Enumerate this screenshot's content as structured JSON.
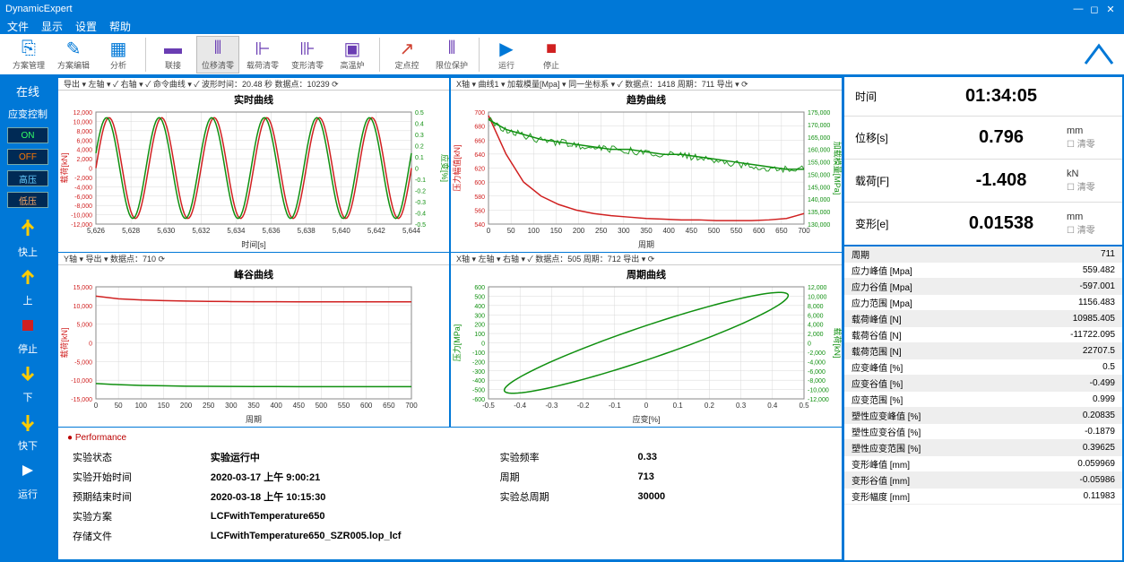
{
  "app_title": "DynamicExpert",
  "menus": [
    "文件",
    "显示",
    "设置",
    "帮助"
  ],
  "toolbar": [
    {
      "label": "方案管理",
      "color": "#0078d7"
    },
    {
      "label": "方案编辑",
      "color": "#0078d7"
    },
    {
      "label": "分析",
      "color": "#0078d7"
    },
    {
      "label": "联接",
      "color": "#6a3db3"
    },
    {
      "label": "位移清零",
      "color": "#6a3db3",
      "sel": true
    },
    {
      "label": "载荷清零",
      "color": "#6a3db3"
    },
    {
      "label": "变形清零",
      "color": "#6a3db3"
    },
    {
      "label": "高温炉",
      "color": "#6a3db3"
    },
    {
      "label": "定点控",
      "color": "#d04030"
    },
    {
      "label": "限位保护",
      "color": "#6a3db3"
    },
    {
      "label": "运行",
      "color": "#0078d7"
    },
    {
      "label": "停止",
      "color": "#d02020"
    }
  ],
  "sidebar": {
    "title1": "在线",
    "title2": "应变控制",
    "on": "ON",
    "off": "OFF",
    "hp": "高压",
    "lp": "低压",
    "labels": [
      "快上",
      "上",
      "停止",
      "下",
      "快下",
      "运行"
    ]
  },
  "charts": {
    "c1": {
      "title": "实时曲线",
      "top": "导出 ▾  左轴 ▾ ✓  右轴 ▾ ✓  命令曲线 ▾ ✓       波形时间：20.48 秒 数据点：10239 ⟳",
      "xlabel": "时间[s]",
      "ylabel_l": "载荷[kN]",
      "ylabel_r": "应变[%]",
      "xticks": [
        "5,626",
        "5,628",
        "5,630",
        "5,632",
        "5,634",
        "5,636",
        "5,638",
        "5,640",
        "5,642",
        "5,644"
      ],
      "yticks_l": [
        "12,000",
        "10,000",
        "8,000",
        "6,000",
        "4,000",
        "2,000",
        "0",
        "-2,000",
        "-4,000",
        "-6,000",
        "-8,000",
        "-10,000",
        "-12,000"
      ],
      "yticks_r": [
        "0.5",
        "0.4",
        "0.3",
        "0.2",
        "0.1",
        "0",
        "-0.1",
        "-0.2",
        "-0.3",
        "-0.4",
        "-0.5"
      ],
      "color_l": "#d02020",
      "color_r": "#109010",
      "type": "sinusoid",
      "cycles": 6,
      "amp": 1,
      "bg": "#ffffff",
      "grid": "#d8d8d8"
    },
    "c2": {
      "title": "趋势曲线",
      "top": "X轴 ▾  曲线1 ▾  加载模量[Mpa]  ▾ 同一坐标系 ▾ ✓ 数据点：1418 周期：711 导出 ▾ ⟳",
      "xlabel": "周期",
      "ylabel_l": "压力幅值[kN]",
      "ylabel_r": "加载模量[MPa]",
      "xticks": [
        "0",
        "50",
        "100",
        "150",
        "200",
        "250",
        "300",
        "350",
        "400",
        "450",
        "500",
        "550",
        "600",
        "650",
        "700"
      ],
      "yticks_l": [
        "700",
        "680",
        "660",
        "640",
        "620",
        "600",
        "580",
        "560",
        "540"
      ],
      "yticks_r": [
        "175,000",
        "170,000",
        "165,000",
        "160,000",
        "155,000",
        "150,000",
        "145,000",
        "140,000",
        "135,000",
        "130,000"
      ],
      "color_l": "#d02020",
      "color_r": "#109010",
      "red_series": [
        695,
        640,
        600,
        580,
        568,
        560,
        555,
        552,
        550,
        548,
        547,
        546,
        546,
        545,
        545,
        545,
        546,
        548,
        555
      ],
      "grn_series": [
        172,
        168,
        166,
        164,
        163,
        162,
        161,
        160,
        160,
        159,
        158,
        158,
        157,
        156,
        155,
        154,
        153,
        152,
        152
      ],
      "noise": true,
      "bg": "#ffffff",
      "grid": "#d8d8d8"
    },
    "c3": {
      "title": "峰谷曲线",
      "top": "Y轴 ▾  导出 ▾ 数据点：710 ⟳",
      "xlabel": "周期",
      "ylabel_l": "载荷[kN]",
      "xticks": [
        "0",
        "50",
        "100",
        "150",
        "200",
        "250",
        "300",
        "350",
        "400",
        "450",
        "500",
        "550",
        "600",
        "650",
        "700"
      ],
      "yticks_l": [
        "15,000",
        "10,000",
        "5,000",
        "0",
        "-5,000",
        "-10,000",
        "-15,000"
      ],
      "color_l": "#d02020",
      "color_r": "#109010",
      "red_series": [
        12500,
        11800,
        11500,
        11300,
        11200,
        11100,
        11050,
        11020,
        11000,
        10990,
        10985,
        10985,
        10985,
        10985,
        10985
      ],
      "grn_series": [
        -10900,
        -11200,
        -11400,
        -11500,
        -11600,
        -11650,
        -11680,
        -11700,
        -11710,
        -11715,
        -11718,
        -11720,
        -11721,
        -11722,
        -11722
      ],
      "bg": "#ffffff",
      "grid": "#d8d8d8"
    },
    "c4": {
      "title": "周期曲线",
      "top": "X轴 ▾  左轴 ▾  右轴 ▾ ✓  数据点：505 周期：712 导出 ▾ ⟳",
      "xlabel": "应变[%]",
      "ylabel_l": "压力[MPa]",
      "ylabel_r": "载荷[kN]",
      "xticks": [
        "-0.5",
        "-0.4",
        "-0.3",
        "-0.2",
        "-0.1",
        "0",
        "0.1",
        "0.2",
        "0.3",
        "0.4",
        "0.5"
      ],
      "yticks_l": [
        "600",
        "500",
        "400",
        "300",
        "200",
        "100",
        "0",
        "-100",
        "-200",
        "-300",
        "-400",
        "-500",
        "-600"
      ],
      "yticks_r": [
        "12,000",
        "10,000",
        "8,000",
        "6,000",
        "4,000",
        "2,000",
        "0",
        "-2,000",
        "-4,000",
        "-6,000",
        "-8,000",
        "-10,000",
        "-12,000"
      ],
      "color_l": "#109010",
      "color_r": "#109010",
      "hysteresis": true,
      "bg": "#ffffff",
      "grid": "#d8d8d8"
    }
  },
  "perf": {
    "header": "● Performance",
    "rows": [
      [
        "实验状态",
        "实验运行中",
        "实验频率",
        "0.33"
      ],
      [
        "实验开始时间",
        "2020-03-17 上午 9:00:21",
        "周期",
        "713"
      ],
      [
        "预期结束时间",
        "2020-03-18 上午 10:15:30",
        "实验总周期",
        "30000"
      ],
      [
        "实验方案",
        "LCFwithTemperature650",
        "",
        ""
      ],
      [
        "存储文件",
        "LCFwithTemperature650_SZR005.lop_lcf",
        "",
        ""
      ]
    ]
  },
  "readouts": [
    {
      "label": "时间",
      "value": "01:34:05",
      "unit": "",
      "zero": ""
    },
    {
      "label": "位移[s]",
      "value": "0.796",
      "unit": "mm",
      "zero": "清零"
    },
    {
      "label": "载荷[F]",
      "value": "-1.408",
      "unit": "kN",
      "zero": "清零"
    },
    {
      "label": "变形[e]",
      "value": "0.01538",
      "unit": "mm",
      "zero": "清零"
    }
  ],
  "stats": [
    [
      "周期",
      "711"
    ],
    [
      "应力峰值 [Mpa]",
      "559.482"
    ],
    [
      "应力谷值 [Mpa]",
      "-597.001"
    ],
    [
      "应力范围 [Mpa]",
      "1156.483"
    ],
    [
      "载荷峰值 [N]",
      "10985.405"
    ],
    [
      "载荷谷值 [N]",
      "-11722.095"
    ],
    [
      "载荷范围 [N]",
      "22707.5"
    ],
    [
      "应变峰值 [%]",
      "0.5"
    ],
    [
      "应变谷值 [%]",
      "-0.499"
    ],
    [
      "应变范围 [%]",
      "0.999"
    ],
    [
      "塑性应变峰值 [%]",
      "0.20835"
    ],
    [
      "塑性应变谷值 [%]",
      "-0.1879"
    ],
    [
      "塑性应变范围 [%]",
      "0.39625"
    ],
    [
      "变形峰值 [mm]",
      "0.059969"
    ],
    [
      "变形谷值 [mm]",
      "-0.05986"
    ],
    [
      "变形幅度 [mm]",
      "0.11983"
    ]
  ]
}
